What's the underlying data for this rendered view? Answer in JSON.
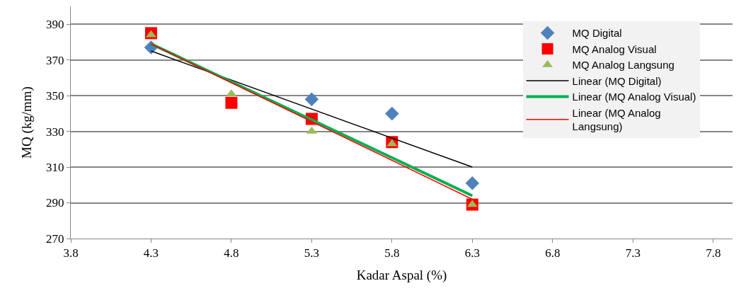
{
  "chart_data": {
    "type": "scatter",
    "xlabel": "Kadar Aspal (%)",
    "ylabel": "MQ (kg/mm)",
    "x": [
      4.3,
      4.8,
      5.3,
      5.8,
      6.3
    ],
    "xlim": [
      3.8,
      7.92
    ],
    "xticks": [
      {
        "value": 3.8,
        "label": "3.8"
      },
      {
        "value": 4.3,
        "label": "4.3"
      },
      {
        "value": 4.8,
        "label": "4.8"
      },
      {
        "value": 5.3,
        "label": "5.3"
      },
      {
        "value": 5.8,
        "label": "5.8"
      },
      {
        "value": 6.3,
        "label": "6.3"
      },
      {
        "value": 6.8,
        "label": "6.8"
      },
      {
        "value": 7.3,
        "label": "7.3"
      },
      {
        "value": 7.8,
        "label": "7.8"
      }
    ],
    "ylim": [
      270,
      400
    ],
    "yticks": [
      270,
      290,
      310,
      330,
      350,
      370,
      390
    ],
    "grid": "y",
    "legend": "right",
    "series": [
      {
        "name": "MQ Digital",
        "color": "#4f81bd",
        "marker": "diamond",
        "values": [
          377,
          null,
          348,
          340,
          301
        ]
      },
      {
        "name": "MQ Analog Visual",
        "color": "#ff0000",
        "marker": "square",
        "values": [
          385,
          346,
          337,
          324,
          289
        ]
      },
      {
        "name": "MQ Analog Langsung",
        "color": "#9bbb59",
        "marker": "triangle",
        "values": [
          384,
          351,
          330,
          323,
          289
        ]
      },
      {
        "name": "Linear (MQ Digital)",
        "type": "line",
        "color": "#000000",
        "marker": "none",
        "values": [
          375,
          null,
          null,
          null,
          310
        ]
      },
      {
        "name": "Linear (MQ Analog Visual)",
        "type": "line",
        "color": "#00b050",
        "marker": "none",
        "values": [
          379,
          null,
          null,
          null,
          294
        ]
      },
      {
        "name": "Linear (MQ Analog Langsung)",
        "type": "line",
        "color": "#ff0000",
        "marker": "none",
        "values": [
          379,
          null,
          null,
          null,
          292
        ]
      }
    ]
  }
}
